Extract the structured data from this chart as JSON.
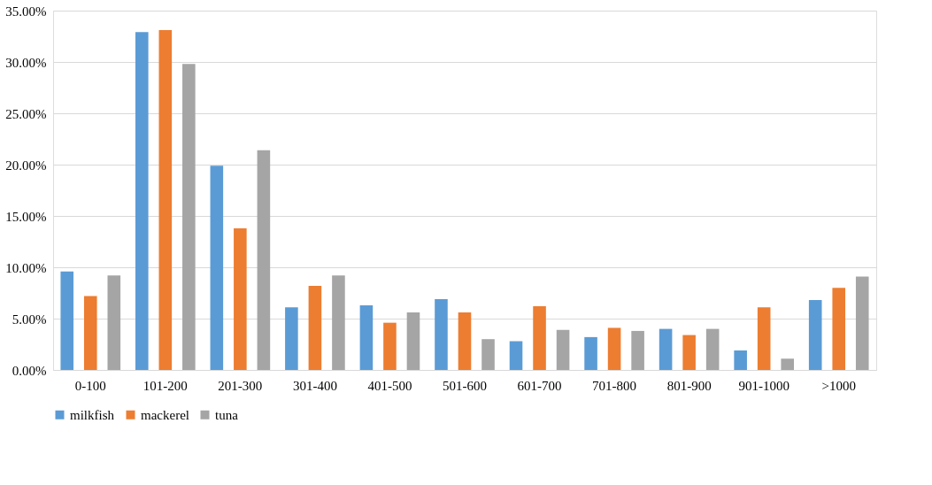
{
  "chart_data": {
    "type": "bar",
    "categories": [
      "0-100",
      "101-200",
      "201-300",
      "301-400",
      "401-500",
      "501-600",
      "601-700",
      "701-800",
      "801-900",
      "901-1000",
      ">1000"
    ],
    "series": [
      {
        "name": "milkfish",
        "color": "#5b9bd5",
        "values": [
          9.6,
          32.9,
          19.9,
          6.1,
          6.3,
          6.9,
          2.8,
          3.2,
          4.0,
          1.9,
          6.8
        ]
      },
      {
        "name": "mackerel",
        "color": "#ed7d31",
        "values": [
          7.2,
          33.1,
          13.8,
          8.2,
          4.6,
          5.6,
          6.2,
          4.1,
          3.4,
          6.1,
          8.0
        ]
      },
      {
        "name": "tuna",
        "color": "#a5a5a5",
        "values": [
          9.2,
          29.8,
          21.4,
          9.2,
          5.6,
          3.0,
          3.9,
          3.8,
          4.0,
          1.1,
          9.1
        ]
      }
    ],
    "ylim": [
      0,
      35
    ],
    "yticks": [
      {
        "value": 0,
        "label": "0.00%"
      },
      {
        "value": 5,
        "label": "5.00%"
      },
      {
        "value": 10,
        "label": "10.00%"
      },
      {
        "value": 15,
        "label": "15.00%"
      },
      {
        "value": 20,
        "label": "20.00%"
      },
      {
        "value": 25,
        "label": "25.00%"
      },
      {
        "value": 30,
        "label": "30.00%"
      },
      {
        "value": 35,
        "label": "35.00%"
      }
    ],
    "grid": "y",
    "legend": "bottom"
  }
}
